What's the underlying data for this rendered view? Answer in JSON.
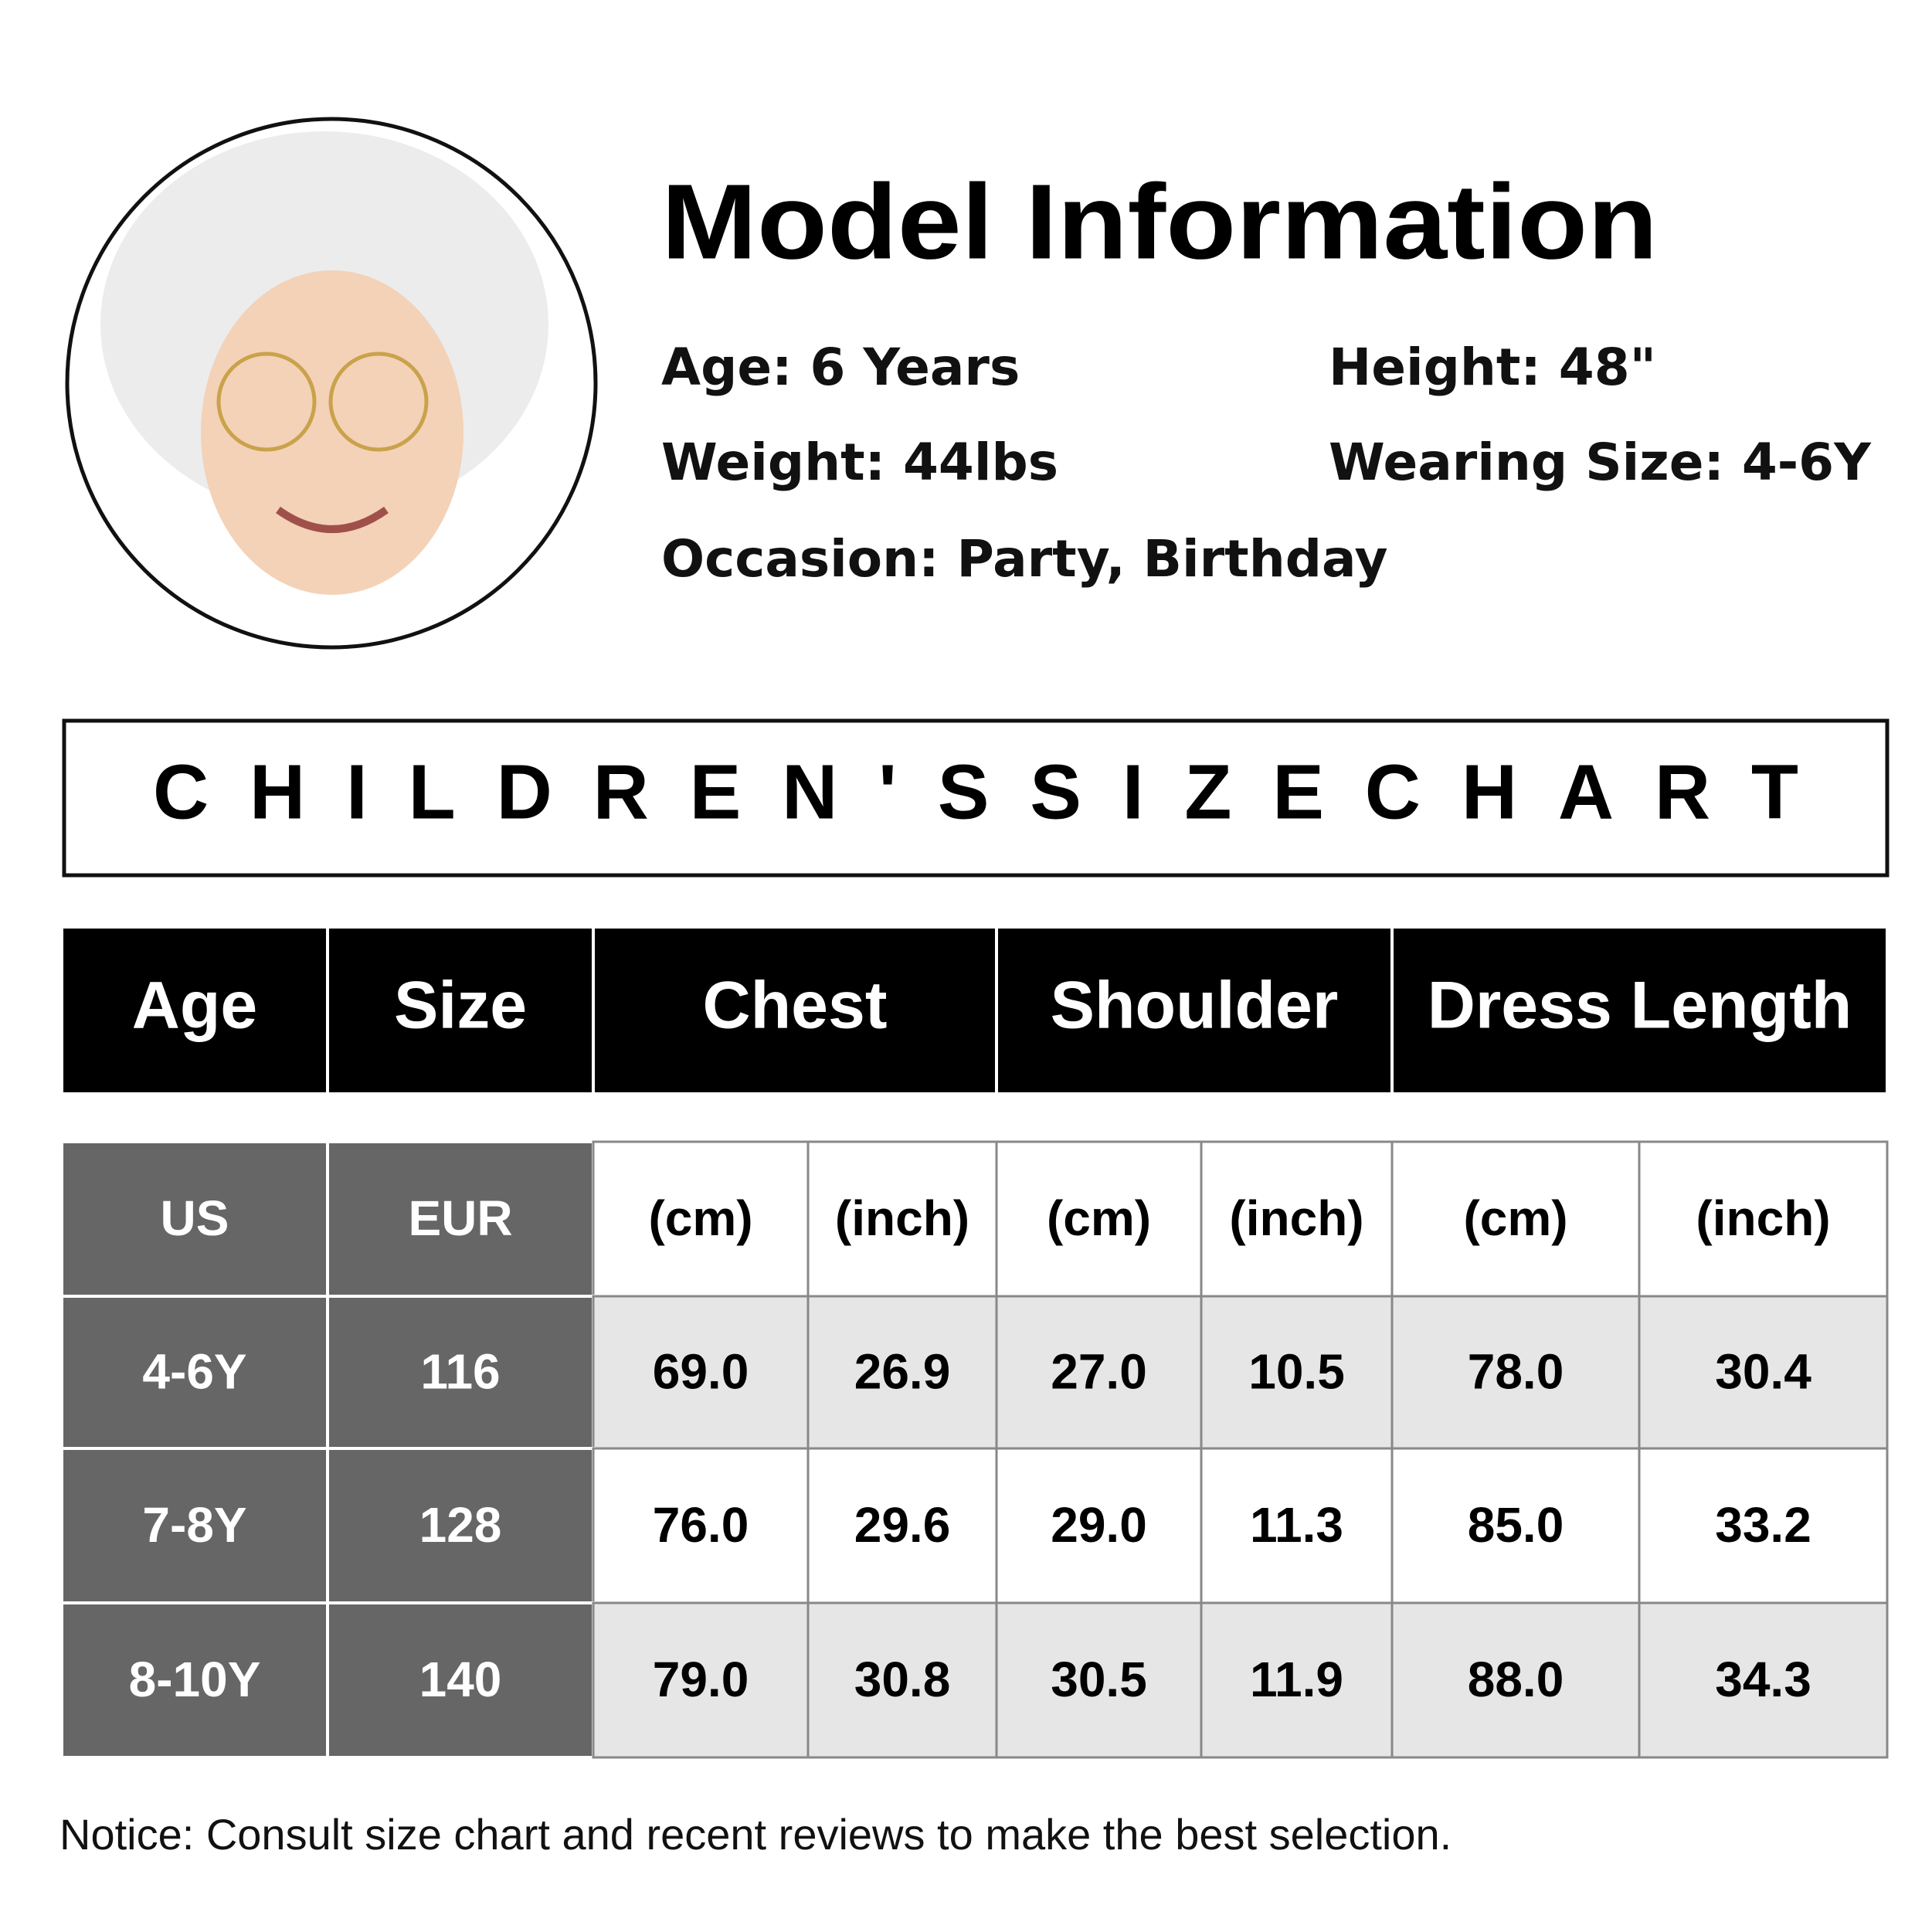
{
  "header": {
    "title": "Model Information"
  },
  "info": {
    "age": "Age: 6 Years",
    "height": "Height: 48\"",
    "weight": "Weight: 44lbs",
    "wearing_size": "Wearing Size: 4-6Y",
    "occasion": "Occasion: Party, Birthday"
  },
  "table": {
    "title": "CHILDREN'SSIZECHART",
    "header": [
      "Age",
      "Size",
      "Chest",
      "Shoulder",
      "Dress Length"
    ],
    "subheader": [
      "US",
      "EUR",
      "(cm)",
      "(inch)",
      "(cm)",
      "(inch)",
      "(cm)",
      "(inch)"
    ],
    "rows": [
      [
        "4-6Y",
        "116",
        "69.0",
        "26.9",
        "27.0",
        "10.5",
        "78.0",
        "30.4"
      ],
      [
        "7-8Y",
        "128",
        "76.0",
        "29.6",
        "29.0",
        "11.3",
        "85.0",
        "33.2"
      ],
      [
        "8-10Y",
        "140",
        "79.0",
        "30.8",
        "30.5",
        "11.9",
        "88.0",
        "34.3"
      ]
    ]
  },
  "footer": {
    "notice": "Notice: Consult size chart and recent reviews to make the best selection."
  }
}
